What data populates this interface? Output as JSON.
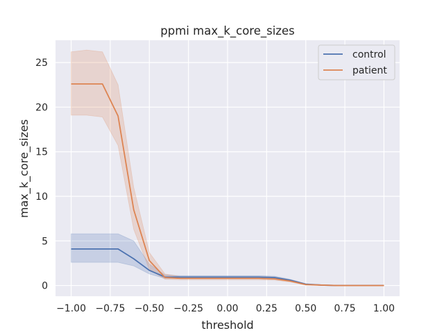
{
  "chart_data": {
    "type": "line",
    "title": "ppmi max_k_core_sizes",
    "xlabel": "threshold",
    "ylabel": "max_k_core_sizes",
    "xlim": [
      -1.1,
      1.1
    ],
    "ylim": [
      -1.2,
      27.5
    ],
    "xticks": [
      -1.0,
      -0.75,
      -0.5,
      -0.25,
      0.0,
      0.25,
      0.5,
      0.75,
      1.0
    ],
    "xtick_labels": [
      "−1.00",
      "−0.75",
      "−0.50",
      "−0.25",
      "0.00",
      "0.25",
      "0.50",
      "0.75",
      "1.00"
    ],
    "yticks": [
      0,
      5,
      10,
      15,
      20,
      25
    ],
    "ytick_labels": [
      "0",
      "5",
      "10",
      "15",
      "20",
      "25"
    ],
    "grid": true,
    "legend_position": "top-right",
    "x": [
      -1.0,
      -0.9,
      -0.8,
      -0.7,
      -0.6,
      -0.5,
      -0.4,
      -0.3,
      -0.2,
      -0.1,
      0.0,
      0.1,
      0.2,
      0.3,
      0.4,
      0.5,
      0.6,
      0.7,
      0.8,
      0.9,
      1.0
    ],
    "series": [
      {
        "name": "control",
        "color": "#4c72b0",
        "values": [
          4.1,
          4.1,
          4.1,
          4.1,
          3.0,
          1.7,
          0.95,
          0.95,
          0.95,
          0.95,
          0.95,
          0.95,
          0.95,
          0.9,
          0.6,
          0.15,
          0.05,
          0.0,
          0.0,
          0.0,
          0.0
        ],
        "ci_low": [
          2.6,
          2.6,
          2.6,
          2.6,
          2.2,
          1.3,
          0.8,
          0.8,
          0.8,
          0.8,
          0.8,
          0.8,
          0.8,
          0.75,
          0.5,
          0.1,
          0.02,
          0.0,
          0.0,
          0.0,
          0.0
        ],
        "ci_high": [
          5.8,
          5.8,
          5.8,
          5.8,
          5.0,
          2.4,
          1.2,
          1.1,
          1.1,
          1.1,
          1.1,
          1.1,
          1.1,
          1.05,
          0.7,
          0.2,
          0.08,
          0.02,
          0.0,
          0.0,
          0.0
        ]
      },
      {
        "name": "patient",
        "color": "#dd8452",
        "values": [
          22.6,
          22.6,
          22.6,
          19.0,
          8.5,
          2.8,
          0.9,
          0.8,
          0.8,
          0.8,
          0.8,
          0.8,
          0.8,
          0.75,
          0.5,
          0.1,
          0.05,
          0.0,
          0.0,
          0.0,
          0.0
        ],
        "ci_low": [
          19.1,
          19.1,
          18.9,
          15.7,
          6.3,
          1.8,
          0.7,
          0.65,
          0.65,
          0.65,
          0.65,
          0.65,
          0.65,
          0.6,
          0.4,
          0.05,
          0.0,
          0.0,
          0.0,
          0.0,
          0.0
        ],
        "ci_high": [
          26.2,
          26.4,
          26.2,
          22.5,
          11.0,
          3.7,
          1.3,
          1.0,
          1.0,
          1.0,
          1.0,
          1.0,
          1.0,
          0.95,
          0.65,
          0.2,
          0.1,
          0.02,
          0.0,
          0.0,
          0.0
        ]
      }
    ]
  }
}
